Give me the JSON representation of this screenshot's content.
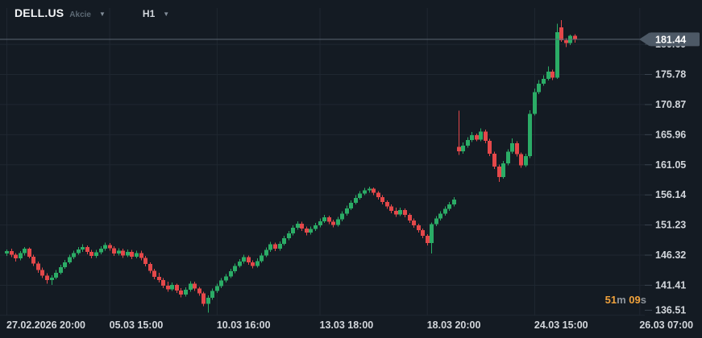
{
  "header": {
    "symbol": "DELL.US",
    "instrument_type": "Akcie",
    "timeframe": "H1"
  },
  "chart_data": {
    "type": "candlestick",
    "symbol": "DELL.US",
    "timeframe": "H1",
    "current_price": "181.44",
    "y_axis": {
      "labels": [
        180.69,
        175.78,
        170.87,
        165.96,
        161.05,
        156.14,
        151.23,
        146.32,
        141.41,
        136.51
      ],
      "step": 4.91
    },
    "x_axis": {
      "ticks": [
        {
          "label": "27.02.2026  20:00",
          "i": 0
        },
        {
          "label": "05.03  15:00",
          "i": 23
        },
        {
          "label": "10.03  16:00",
          "i": 47
        },
        {
          "label": "13.03  18:00",
          "i": 70
        },
        {
          "label": "18.03  20:00",
          "i": 94
        },
        {
          "label": "24.03  15:00",
          "i": 118
        },
        {
          "label": "26.03  07:00",
          "i": 141.5
        }
      ]
    },
    "countdown": {
      "minutes": "51",
      "minutes_unit": "m",
      "seconds": "09",
      "seconds_unit": "s"
    },
    "colors": {
      "up": "#2bac66",
      "down": "#e4484a",
      "grid": "#1f2731",
      "axis_text": "#d3d7dc",
      "current_price_line": "#5c6773",
      "current_price_tag": "#4d5966",
      "countdown_accent": "#f0a23c",
      "countdown_unit": "#8d949c"
    },
    "candles": [
      [
        146.5,
        147.2,
        146.1,
        146.9
      ],
      [
        146.9,
        147.3,
        145.9,
        146.3
      ],
      [
        146.3,
        146.6,
        145.2,
        145.7
      ],
      [
        145.7,
        146.9,
        145.4,
        146.6
      ],
      [
        146.6,
        147.6,
        146.2,
        147.3
      ],
      [
        147.3,
        147.5,
        145.7,
        146.0
      ],
      [
        146.0,
        146.3,
        144.5,
        144.9
      ],
      [
        144.9,
        145.2,
        143.4,
        143.8
      ],
      [
        143.8,
        144.2,
        142.5,
        142.9
      ],
      [
        142.9,
        143.3,
        141.6,
        142.2
      ],
      [
        142.2,
        143.0,
        141.4,
        142.6
      ],
      [
        142.6,
        143.8,
        142.3,
        143.4
      ],
      [
        143.4,
        144.7,
        143.1,
        144.3
      ],
      [
        144.3,
        145.5,
        144.0,
        145.1
      ],
      [
        145.1,
        146.3,
        144.8,
        145.9
      ],
      [
        145.9,
        147.0,
        145.6,
        146.6
      ],
      [
        146.6,
        147.6,
        146.3,
        147.2
      ],
      [
        147.2,
        148.0,
        146.8,
        147.6
      ],
      [
        147.6,
        147.8,
        146.4,
        146.8
      ],
      [
        146.8,
        147.1,
        145.7,
        146.1
      ],
      [
        146.1,
        147.1,
        145.8,
        146.7
      ],
      [
        146.7,
        147.7,
        146.4,
        147.3
      ],
      [
        147.3,
        148.3,
        147.0,
        147.9
      ],
      [
        147.9,
        148.2,
        147.0,
        147.4
      ],
      [
        147.4,
        147.7,
        146.1,
        146.5
      ],
      [
        146.5,
        147.4,
        146.2,
        147.0
      ],
      [
        147.0,
        147.3,
        145.8,
        146.2
      ],
      [
        146.2,
        147.2,
        145.9,
        146.8
      ],
      [
        146.8,
        147.1,
        145.6,
        146.0
      ],
      [
        146.0,
        147.0,
        145.7,
        146.6
      ],
      [
        146.6,
        147.0,
        145.4,
        145.8
      ],
      [
        145.8,
        146.1,
        144.4,
        144.8
      ],
      [
        144.8,
        145.1,
        143.3,
        143.7
      ],
      [
        143.7,
        144.0,
        142.3,
        142.7
      ],
      [
        142.7,
        143.4,
        141.8,
        142.2
      ],
      [
        142.2,
        142.5,
        140.9,
        141.3
      ],
      [
        141.3,
        141.9,
        140.3,
        140.7
      ],
      [
        140.7,
        141.8,
        140.4,
        141.4
      ],
      [
        141.4,
        141.6,
        140.1,
        140.5
      ],
      [
        140.5,
        140.9,
        139.4,
        139.8
      ],
      [
        139.8,
        141.0,
        139.5,
        140.6
      ],
      [
        140.6,
        142.0,
        140.3,
        141.6
      ],
      [
        141.6,
        141.9,
        140.4,
        140.8
      ],
      [
        140.8,
        141.1,
        139.6,
        140.0
      ],
      [
        140.0,
        140.3,
        137.9,
        138.3
      ],
      [
        138.3,
        139.7,
        136.9,
        139.3
      ],
      [
        139.3,
        140.8,
        139.0,
        140.4
      ],
      [
        140.4,
        141.6,
        140.1,
        141.2
      ],
      [
        141.2,
        142.5,
        140.9,
        142.1
      ],
      [
        142.1,
        143.2,
        141.8,
        142.8
      ],
      [
        142.8,
        144.0,
        142.5,
        143.6
      ],
      [
        143.6,
        144.9,
        143.3,
        144.5
      ],
      [
        144.5,
        145.6,
        144.2,
        145.2
      ],
      [
        145.2,
        146.3,
        144.9,
        145.9
      ],
      [
        145.9,
        146.2,
        144.7,
        145.1
      ],
      [
        145.1,
        145.4,
        144.1,
        144.5
      ],
      [
        144.5,
        145.7,
        144.2,
        145.3
      ],
      [
        145.3,
        146.6,
        145.0,
        146.2
      ],
      [
        146.2,
        147.5,
        145.9,
        147.1
      ],
      [
        147.1,
        148.4,
        146.8,
        148.0
      ],
      [
        148.0,
        148.3,
        146.9,
        147.3
      ],
      [
        147.3,
        148.5,
        147.0,
        148.1
      ],
      [
        148.1,
        149.4,
        147.8,
        149.0
      ],
      [
        149.0,
        150.2,
        148.7,
        149.8
      ],
      [
        149.8,
        151.1,
        149.5,
        150.7
      ],
      [
        150.7,
        151.8,
        150.4,
        151.4
      ],
      [
        151.4,
        151.7,
        150.2,
        150.6
      ],
      [
        150.6,
        150.9,
        149.5,
        149.9
      ],
      [
        149.9,
        150.9,
        149.6,
        150.5
      ],
      [
        150.5,
        151.5,
        150.2,
        151.1
      ],
      [
        151.1,
        152.2,
        150.8,
        151.8
      ],
      [
        151.8,
        152.8,
        151.5,
        152.4
      ],
      [
        152.4,
        152.7,
        151.3,
        151.7
      ],
      [
        151.7,
        152.0,
        150.8,
        151.2
      ],
      [
        151.2,
        152.5,
        150.9,
        152.1
      ],
      [
        152.1,
        153.4,
        151.8,
        153.0
      ],
      [
        153.0,
        154.3,
        152.7,
        153.9
      ],
      [
        153.9,
        155.2,
        153.6,
        154.8
      ],
      [
        154.8,
        156.0,
        154.5,
        155.6
      ],
      [
        155.6,
        156.7,
        155.3,
        156.3
      ],
      [
        156.3,
        157.2,
        156.0,
        156.8
      ],
      [
        156.8,
        157.4,
        156.4,
        157.1
      ],
      [
        157.1,
        157.3,
        156.0,
        156.4
      ],
      [
        156.4,
        156.7,
        155.3,
        155.7
      ],
      [
        155.7,
        156.0,
        154.5,
        154.9
      ],
      [
        154.9,
        155.2,
        153.8,
        154.2
      ],
      [
        154.2,
        154.5,
        153.1,
        153.5
      ],
      [
        153.5,
        154.0,
        152.5,
        152.9
      ],
      [
        152.9,
        154.0,
        152.6,
        153.6
      ],
      [
        153.6,
        153.9,
        152.4,
        152.8
      ],
      [
        152.8,
        153.1,
        151.5,
        151.9
      ],
      [
        151.9,
        152.2,
        150.7,
        151.1
      ],
      [
        151.1,
        151.4,
        149.9,
        150.3
      ],
      [
        150.3,
        150.6,
        149.0,
        149.4
      ],
      [
        149.4,
        149.7,
        147.8,
        148.2
      ],
      [
        148.2,
        151.6,
        146.5,
        151.3
      ],
      [
        151.3,
        152.6,
        151.0,
        152.2
      ],
      [
        152.2,
        153.4,
        151.9,
        153.0
      ],
      [
        153.0,
        154.2,
        152.7,
        153.8
      ],
      [
        153.8,
        154.9,
        153.5,
        154.5
      ],
      [
        154.5,
        155.7,
        154.2,
        155.3
      ],
      [
        163.9,
        169.8,
        162.6,
        163.2
      ],
      [
        163.2,
        164.6,
        162.8,
        164.1
      ],
      [
        164.1,
        165.5,
        163.8,
        165.0
      ],
      [
        165.0,
        166.3,
        164.7,
        165.8
      ],
      [
        165.8,
        166.1,
        164.8,
        165.1
      ],
      [
        165.1,
        166.9,
        164.8,
        166.4
      ],
      [
        166.4,
        166.7,
        164.5,
        164.9
      ],
      [
        164.9,
        165.2,
        162.4,
        162.8
      ],
      [
        162.8,
        163.1,
        160.3,
        160.7
      ],
      [
        160.7,
        161.0,
        158.2,
        159.0
      ],
      [
        159.0,
        161.6,
        158.7,
        161.2
      ],
      [
        161.2,
        163.5,
        160.9,
        163.1
      ],
      [
        163.1,
        165.3,
        162.8,
        164.5
      ],
      [
        164.5,
        164.8,
        162.3,
        162.7
      ],
      [
        162.7,
        163.0,
        160.5,
        160.9
      ],
      [
        160.9,
        162.8,
        160.6,
        162.4
      ],
      [
        162.4,
        169.9,
        162.1,
        169.3
      ],
      [
        169.3,
        173.4,
        169.0,
        172.8
      ],
      [
        172.8,
        174.8,
        172.5,
        174.2
      ],
      [
        174.2,
        175.6,
        173.9,
        175.0
      ],
      [
        175.0,
        177.0,
        174.7,
        176.2
      ],
      [
        176.2,
        176.5,
        174.8,
        175.2
      ],
      [
        175.2,
        184.0,
        175.0,
        182.6
      ],
      [
        183.4,
        184.6,
        181.0,
        181.3
      ],
      [
        181.3,
        181.6,
        180.2,
        180.8
      ],
      [
        180.8,
        182.2,
        180.5,
        182.0
      ],
      [
        182.0,
        182.3,
        180.9,
        181.44
      ]
    ]
  }
}
